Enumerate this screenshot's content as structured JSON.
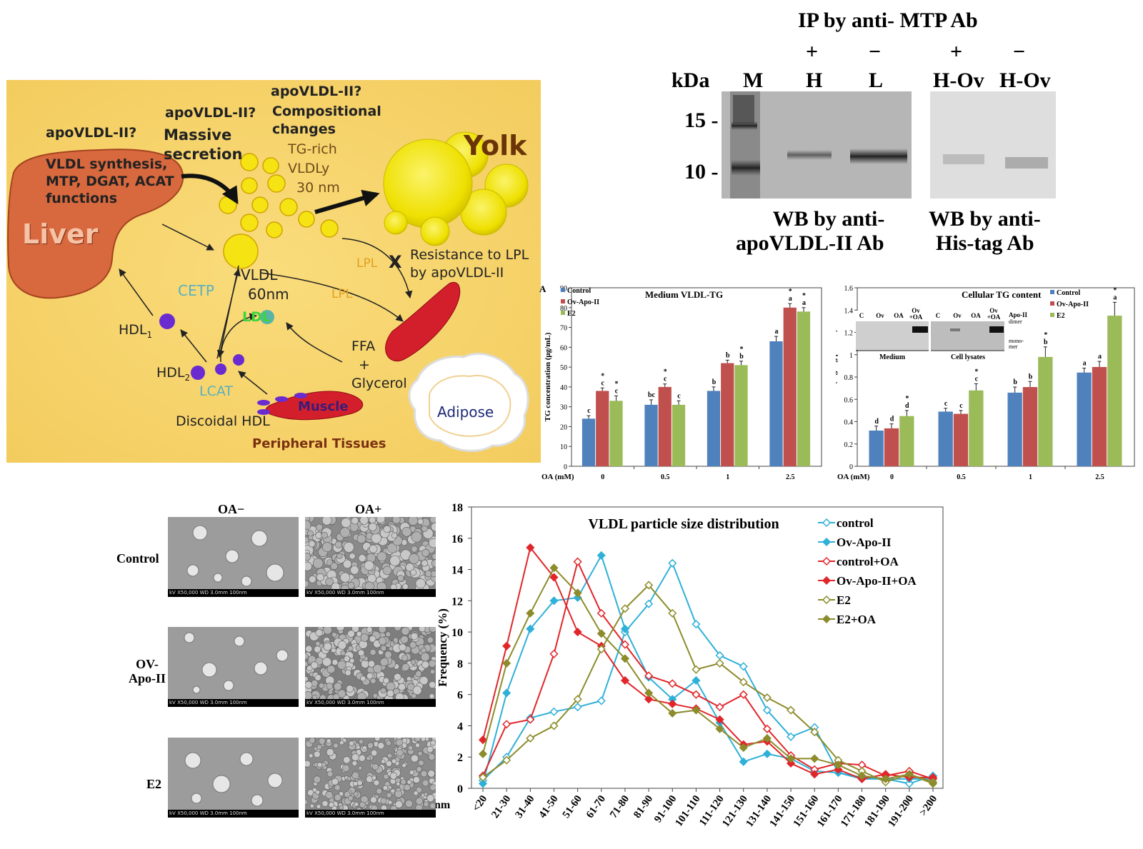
{
  "diagram": {
    "liver": "Liver",
    "yolk": "Yolk",
    "q1": "apoVLDL-II?",
    "q2": "apoVLDL-II?",
    "q3": "apoVLDL-II?",
    "vldl_synthesis": [
      "VLDL synthesis,",
      "MTP, DGAT, ACAT",
      "functions"
    ],
    "massive": [
      "Massive",
      "secretion"
    ],
    "compositional": [
      "Compositional",
      "changes"
    ],
    "tgrich": [
      "TG-rich",
      "VLDLy",
      "30 nm"
    ],
    "resistance": [
      "Resistance to LPL",
      "by apoVLDL-II"
    ],
    "x_mark": "X",
    "lpl1": "LPL",
    "lpl2": "LPL",
    "cetp": "CETP",
    "vldl60": [
      "VLDL",
      "60nm"
    ],
    "ldl": "LDL",
    "hdl1": "HDL",
    "hdl1_sub": "1",
    "hdl2": "HDL",
    "hdl2_sub": "2",
    "lcat": "LCAT",
    "ffa": [
      "FFA",
      "+",
      "Glycerol"
    ],
    "discoidal": "Discoidal HDL",
    "muscle": "Muscle",
    "adipose": "Adipose",
    "peripheral": "Peripheral Tissues"
  },
  "blot": {
    "title": "IP by anti- MTP Ab",
    "kda": "kDa",
    "lanes_left": [
      {
        "sign": "",
        "label": "M"
      },
      {
        "sign": "+",
        "label": "H"
      },
      {
        "sign": "−",
        "label": "L"
      }
    ],
    "lanes_right": [
      {
        "sign": "+",
        "label": "H-Ov"
      },
      {
        "sign": "−",
        "label": "H-Ov"
      }
    ],
    "markers": [
      "15 -",
      "10 -"
    ],
    "wb_left": [
      "WB by anti-",
      "apoVLDL-II Ab"
    ],
    "wb_right": [
      "WB by anti-",
      "His-tag Ab"
    ]
  },
  "chart_data": [
    {
      "type": "bar",
      "panel": "A",
      "title": "Medium VLDL-TG",
      "xlabel": "OA (mM)",
      "ylabel": "TG concentration (μg/mL)",
      "ylim": [
        0,
        90
      ],
      "yticks": [
        0,
        10,
        20,
        30,
        40,
        50,
        60,
        70,
        80,
        90
      ],
      "categories": [
        "0",
        "0.5",
        "1",
        "2.5"
      ],
      "series": [
        {
          "name": "Control",
          "values": [
            24,
            31,
            38,
            63
          ],
          "errors": [
            1.5,
            2.5,
            2,
            2.5
          ],
          "labels": [
            [
              "c"
            ],
            [
              "bc"
            ],
            [
              "b"
            ],
            [
              "a"
            ]
          ]
        },
        {
          "name": "Ov-Apo-II",
          "values": [
            38,
            40,
            52,
            80
          ],
          "errors": [
            1.5,
            1.5,
            1.5,
            2
          ],
          "labels": [
            [
              "*",
              "c"
            ],
            [
              "*",
              "c"
            ],
            [
              "b"
            ],
            [
              "*",
              "a"
            ]
          ]
        },
        {
          "name": "E2",
          "values": [
            33,
            31,
            51,
            78
          ],
          "errors": [
            2.5,
            2,
            2,
            2
          ],
          "labels": [
            [
              "*",
              "c"
            ],
            [
              "c"
            ],
            [
              "*",
              "b"
            ],
            [
              "*",
              "a"
            ]
          ]
        }
      ],
      "legend": "top-left",
      "colors": [
        "#4f81bd",
        "#c0504d",
        "#9bbb59"
      ]
    },
    {
      "type": "bar",
      "panel": "B",
      "title": "Cellular TG content",
      "xlabel": "OA (mM)",
      "ylabel": "TG content (mg/mg protein)",
      "ylim": [
        0,
        1.6
      ],
      "yticks": [
        "0",
        "0.2",
        "0.4",
        "0.6",
        "0.8",
        "1",
        "1.2",
        "1.4",
        "1.6"
      ],
      "categories": [
        "0",
        "0.5",
        "1",
        "2.5"
      ],
      "series": [
        {
          "name": "Control",
          "values": [
            0.32,
            0.49,
            0.66,
            0.84
          ],
          "errors": [
            0.04,
            0.03,
            0.05,
            0.04
          ],
          "labels": [
            [
              "d"
            ],
            [
              "c"
            ],
            [
              "b"
            ],
            [
              "a"
            ]
          ]
        },
        {
          "name": "Ov-Apo-II",
          "values": [
            0.34,
            0.47,
            0.71,
            0.89
          ],
          "errors": [
            0.04,
            0.03,
            0.05,
            0.05
          ],
          "labels": [
            [
              "d"
            ],
            [
              "c"
            ],
            [
              "b"
            ],
            [
              "a"
            ]
          ]
        },
        {
          "name": "E2",
          "values": [
            0.45,
            0.68,
            0.98,
            1.35
          ],
          "errors": [
            0.05,
            0.06,
            0.09,
            0.12
          ],
          "labels": [
            [
              "*",
              "d"
            ],
            [
              "*",
              "c"
            ],
            [
              "*",
              "b"
            ],
            [
              "*",
              "a"
            ]
          ]
        }
      ],
      "legend": "top-right",
      "colors": [
        "#4f81bd",
        "#c0504d",
        "#9bbb59"
      ],
      "inset": {
        "lanes": [
          "C",
          "Ov",
          "OA",
          "Ov\n+OA",
          "C",
          "Ov",
          "OA",
          "Ov\n+OA"
        ],
        "groups": [
          "Medium",
          "Cell lysates"
        ],
        "labels": [
          "Apo-II",
          "dimer",
          "mono-",
          "mer"
        ]
      }
    },
    {
      "type": "line",
      "title": "VLDL particle size distribution",
      "xlabel": "nm",
      "ylabel": "Frequency (%)",
      "ylim": [
        0,
        18
      ],
      "yticks": [
        0,
        2,
        4,
        6,
        8,
        10,
        12,
        14,
        16,
        18
      ],
      "categories": [
        "<20",
        "21-30",
        "31-40",
        "41-50",
        "51-60",
        "61-70",
        "71-80",
        "81-90",
        "91-100",
        "101-110",
        "111-120",
        "121-130",
        "131-140",
        "141-150",
        "151-160",
        "161-170",
        "171-180",
        "181-190",
        "191-200",
        ">200"
      ],
      "series": [
        {
          "name": "control",
          "color": "#2fb0d8",
          "marker": "open",
          "values": [
            0.5,
            2.0,
            4.5,
            4.9,
            5.2,
            5.6,
            10.0,
            11.8,
            14.4,
            10.5,
            8.5,
            7.8,
            5.0,
            3.3,
            3.9,
            1.0,
            0.7,
            0.6,
            0.3,
            0.8
          ]
        },
        {
          "name": "Ov-Apo-II",
          "color": "#2fb0d8",
          "marker": "filled",
          "values": [
            0.3,
            6.1,
            10.2,
            12.0,
            12.2,
            14.9,
            10.2,
            7.1,
            5.7,
            6.9,
            4.2,
            1.7,
            2.2,
            1.9,
            1.1,
            1.0,
            0.6,
            0.6,
            0.6,
            0.6
          ]
        },
        {
          "name": "control+OA",
          "color": "#e0262a",
          "marker": "open",
          "values": [
            0.8,
            4.1,
            4.4,
            8.6,
            14.5,
            11.2,
            9.2,
            7.2,
            6.7,
            6.0,
            5.2,
            6.0,
            3.8,
            2.1,
            1.2,
            1.6,
            1.5,
            0.8,
            1.1,
            0.6
          ]
        },
        {
          "name": "Ov-Apo-II+OA",
          "color": "#e0262a",
          "marker": "filled",
          "values": [
            3.1,
            9.1,
            15.4,
            13.5,
            10.0,
            9.1,
            6.9,
            5.7,
            5.4,
            5.1,
            4.4,
            2.8,
            3.0,
            1.6,
            0.9,
            1.2,
            0.6,
            0.9,
            0.7,
            0.7
          ]
        },
        {
          "name": "E2",
          "color": "#8c8c2c",
          "marker": "open",
          "values": [
            0.7,
            1.8,
            3.2,
            4.0,
            5.7,
            8.9,
            11.5,
            13.0,
            11.2,
            7.6,
            8.0,
            6.8,
            5.8,
            5.0,
            3.6,
            1.8,
            1.1,
            0.4,
            0.9,
            0.4
          ]
        },
        {
          "name": "E2+OA",
          "color": "#8c8c2c",
          "marker": "filled",
          "values": [
            2.2,
            8.0,
            11.2,
            14.1,
            12.5,
            9.9,
            8.3,
            6.1,
            4.8,
            5.0,
            3.8,
            2.6,
            3.2,
            1.9,
            1.9,
            1.5,
            0.8,
            0.6,
            0.9,
            0.3
          ]
        }
      ],
      "legend": "right",
      "grid": false
    }
  ],
  "sem": {
    "cols": [
      "OA−",
      "OA+"
    ],
    "rows": [
      "Control",
      "OV-\nApo-II",
      "E2"
    ],
    "scale_text": "kV     X50,000     WD 3.0mm        100nm"
  }
}
